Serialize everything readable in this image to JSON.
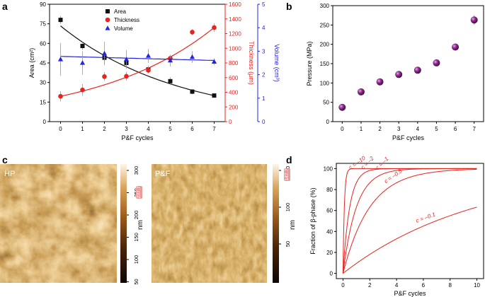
{
  "panels": {
    "a": {
      "letter": "a"
    },
    "b": {
      "letter": "b"
    },
    "c": {
      "letter": "c"
    },
    "d": {
      "letter": "d"
    }
  },
  "chart_data": [
    {
      "panel": "a",
      "type": "scatter",
      "xlabel": "P&F cycles",
      "x": [
        0,
        1,
        2,
        3,
        4,
        5,
        6,
        7
      ],
      "xlim": [
        -0.5,
        7.5
      ],
      "xticks": [
        "0",
        "1",
        "2",
        "3",
        "4",
        "5",
        "6",
        "7"
      ],
      "axes": {
        "left": {
          "label": "Area (cm²)",
          "ylim": [
            0,
            90
          ],
          "ticks": [
            0,
            15,
            30,
            45,
            60,
            75,
            90
          ],
          "color": "#111111"
        },
        "right1": {
          "label": "Thickness (μm)",
          "ylim": [
            0,
            1600
          ],
          "ticks": [
            0,
            200,
            400,
            600,
            800,
            1000,
            1200,
            1400,
            1600
          ],
          "color": "#e8231f"
        },
        "right2": {
          "label": "Volume (cm³)",
          "ylim": [
            0,
            5
          ],
          "ticks": [
            0,
            1,
            2,
            3,
            4,
            5
          ],
          "color": "#2424e0"
        }
      },
      "series": [
        {
          "name": "Area",
          "axis": "left",
          "marker": "square",
          "color": "#111111",
          "values": [
            78,
            58,
            49,
            45,
            40,
            31,
            23,
            20
          ],
          "errors": [
            3,
            3,
            5,
            3,
            3,
            3,
            2,
            1
          ],
          "fit": {
            "kind": "exp",
            "a": 73.4,
            "b": -0.186
          }
        },
        {
          "name": "Thickness",
          "axis": "right1",
          "marker": "circle",
          "color": "#e8231f",
          "values": [
            345,
            432,
            614,
            619,
            700,
            863,
            1220,
            1282
          ],
          "errors": [
            70,
            80,
            60,
            60,
            40,
            30,
            40,
            60
          ],
          "fit": {
            "kind": "exp",
            "a": 345,
            "b": 0.1876
          }
        },
        {
          "name": "Volume",
          "axis": "right2",
          "marker": "triangle",
          "color": "#2424e0",
          "values": [
            2.65,
            2.5,
            2.9,
            2.65,
            2.8,
            2.6,
            2.75,
            2.55
          ],
          "errors": [
            0.7,
            0.5,
            0.5,
            0.4,
            0.3,
            0.25,
            0.25,
            0.15
          ],
          "fit": {
            "kind": "linear",
            "a": 2.78,
            "b": -0.025
          }
        }
      ],
      "legend": "top-center"
    },
    {
      "panel": "b",
      "type": "scatter",
      "xlabel": "P&F cycles",
      "ylabel": "Pressure (MPa)",
      "x": [
        0,
        1,
        2,
        3,
        4,
        5,
        6,
        7
      ],
      "xlim": [
        -0.5,
        7.5
      ],
      "ylim": [
        0,
        300
      ],
      "xticks": [
        "0",
        "1",
        "2",
        "3",
        "4",
        "5",
        "6",
        "7"
      ],
      "yticks": [
        "0",
        "50",
        "100",
        "150",
        "200",
        "250",
        "300"
      ],
      "series": [
        {
          "marker": "sphere",
          "color": "#7a1b7a",
          "values": [
            37,
            77,
            103,
            122,
            133,
            152,
            193,
            263
          ],
          "errors": [
            3,
            3,
            4,
            3,
            3,
            4,
            8,
            12
          ]
        }
      ]
    },
    {
      "panel": "d",
      "type": "line",
      "xlabel": "P&F cycles",
      "ylabel": "Fraction of β-phase (%)",
      "xlim": [
        -0.5,
        10.5
      ],
      "ylim": [
        -5,
        105
      ],
      "xticks": [
        "0",
        "2",
        "4",
        "6",
        "8",
        "10"
      ],
      "yticks": [
        "0",
        "20",
        "40",
        "60",
        "80",
        "100"
      ],
      "color": "#e8231f",
      "model": "100*(1-exp(c*x))",
      "series": [
        {
          "name": "c = –10",
          "c": -10
        },
        {
          "name": "c = –2",
          "c": -2
        },
        {
          "name": "c = –1",
          "c": -1
        },
        {
          "name": "c = –0.5",
          "c": -0.5
        },
        {
          "name": "c = –0.1",
          "c": -0.1
        }
      ]
    }
  ],
  "afm": {
    "left": {
      "label": "HP",
      "unit": "nm",
      "scale_ticks": [
        "300",
        "250",
        "200",
        "150",
        "100",
        "50"
      ],
      "scale_marker": "237.7"
    },
    "right": {
      "label": "P&F",
      "unit": "nm",
      "scale_ticks": [
        "150",
        "100",
        "50"
      ],
      "scale_marker": "147.7"
    }
  }
}
